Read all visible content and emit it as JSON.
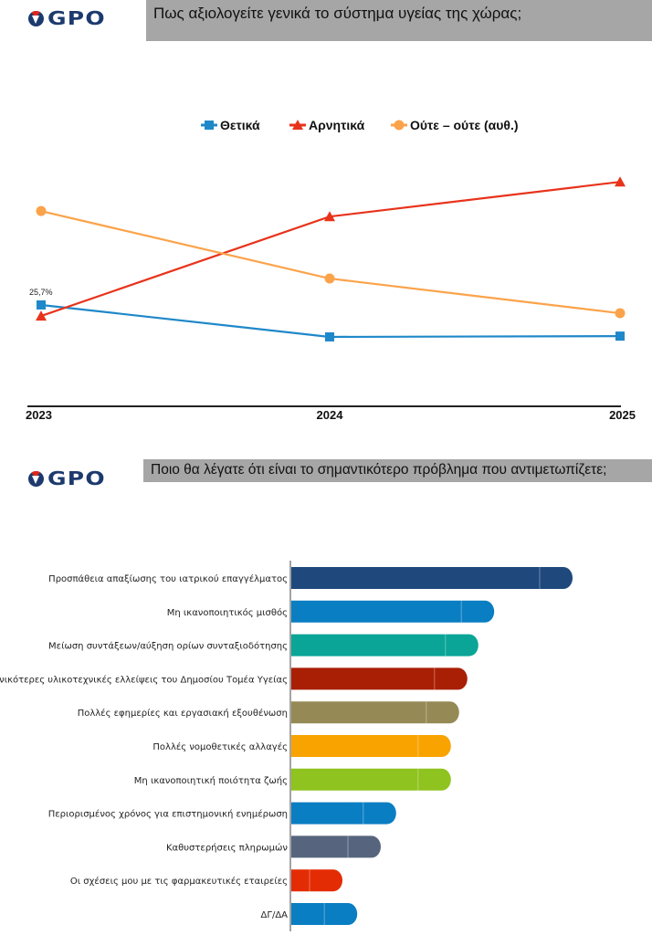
{
  "section1": {
    "logo_text": "GPO",
    "question": "Πως αξιολογείτε γενικά το σύστημα υγείας της χώρας;"
  },
  "section2": {
    "logo_text": "GPO",
    "question": "Ποιο θα λέγατε ότι είναι το σημαντικότερο πρόβλημα που αντιμετωπίζετε;"
  },
  "chart_data": [
    {
      "type": "line",
      "categories": [
        "2023",
        "2024",
        "2025"
      ],
      "legend_position": "top",
      "grid": false,
      "series": [
        {
          "name": "Θετικά",
          "values": [
            25.7,
            17.6,
            17.8
          ],
          "color": "#1f88c9",
          "marker": "square",
          "labels": [
            "25,7%",
            "",
            ""
          ]
        },
        {
          "name": "Αρνητικά",
          "values": [
            22.9,
            48.1,
            56.9
          ],
          "color": "#e8331b",
          "marker": "triangle",
          "labels": [
            "",
            "",
            ""
          ]
        },
        {
          "name": "Ούτε – ούτε (αυθ.)",
          "values": [
            49.5,
            32.4,
            23.6
          ],
          "color": "#fba34a",
          "marker": "circle",
          "labels": [
            "",
            "",
            ""
          ]
        }
      ]
    },
    {
      "type": "bar",
      "orientation": "horizontal",
      "categories": [
        "Προσπάθεια απαξίωσης του ιατρικού επαγγέλματος",
        "Μη ικανοποιητικός μισθός",
        "Μείωση συντάξεων/αύξηση ορίων συνταξιοδότησης",
        "Γενικότερες υλικοτεχνικές ελλείψεις του Δημοσίου Τομέα Υγείας",
        "Πολλές εφημερίες και εργασιακή εξουθένωση",
        "Πολλές νομοθετικές αλλαγές",
        "Μη ικανοποιητική ποιότητα ζωής",
        "Περιορισμένος χρόνος για επιστημονική ενημέρωση",
        "Καθυστερήσεις πληρωμών",
        "Οι σχέσεις μου με τις φαρμακευτικές εταιρείες",
        "ΔΓ/ΔΑ"
      ],
      "values": [
        51.5,
        37.2,
        34.3,
        32.3,
        30.8,
        29.3,
        29.3,
        19.3,
        16.5,
        9.5,
        12.2
      ],
      "colors": [
        "#1f497d",
        "#0a7ec2",
        "#0aa597",
        "#a91f05",
        "#958a55",
        "#f9a300",
        "#8fc31f",
        "#0a7ec2",
        "#56657d",
        "#e42c04",
        "#0a7ec2"
      ]
    }
  ]
}
